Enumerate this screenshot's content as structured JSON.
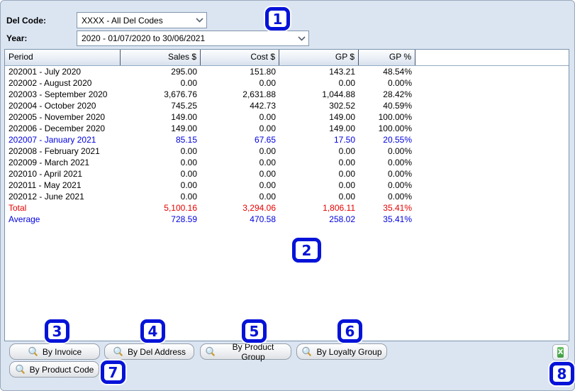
{
  "filters": {
    "del_code_label": "Del Code:",
    "del_code_value": "XXXX - All Del Codes",
    "year_label": "Year:",
    "year_value": "2020 - 01/07/2020 to 30/06/2021"
  },
  "table": {
    "columns": [
      "Period",
      "Sales $",
      "Cost $",
      "GP $",
      "GP %"
    ],
    "rows": [
      {
        "period": "202001 - July 2020",
        "sales": "295.00",
        "cost": "151.80",
        "gp": "143.21",
        "gp_pct": "48.54%",
        "style": "default"
      },
      {
        "period": "202002 - August 2020",
        "sales": "0.00",
        "cost": "0.00",
        "gp": "0.00",
        "gp_pct": "0.00%",
        "style": "default"
      },
      {
        "period": "202003 - September 2020",
        "sales": "3,676.76",
        "cost": "2,631.88",
        "gp": "1,044.88",
        "gp_pct": "28.42%",
        "style": "default"
      },
      {
        "period": "202004 - October 2020",
        "sales": "745.25",
        "cost": "442.73",
        "gp": "302.52",
        "gp_pct": "40.59%",
        "style": "default"
      },
      {
        "period": "202005 - November 2020",
        "sales": "149.00",
        "cost": "0.00",
        "gp": "149.00",
        "gp_pct": "100.00%",
        "style": "default"
      },
      {
        "period": "202006 - December 2020",
        "sales": "149.00",
        "cost": "0.00",
        "gp": "149.00",
        "gp_pct": "100.00%",
        "style": "default"
      },
      {
        "period": "202007 - January 2021",
        "sales": "85.15",
        "cost": "67.65",
        "gp": "17.50",
        "gp_pct": "20.55%",
        "style": "highlight"
      },
      {
        "period": "202008 - February 2021",
        "sales": "0.00",
        "cost": "0.00",
        "gp": "0.00",
        "gp_pct": "0.00%",
        "style": "default"
      },
      {
        "period": "202009 - March 2021",
        "sales": "0.00",
        "cost": "0.00",
        "gp": "0.00",
        "gp_pct": "0.00%",
        "style": "default"
      },
      {
        "period": "202010 - April 2021",
        "sales": "0.00",
        "cost": "0.00",
        "gp": "0.00",
        "gp_pct": "0.00%",
        "style": "default"
      },
      {
        "period": "202011 - May 2021",
        "sales": "0.00",
        "cost": "0.00",
        "gp": "0.00",
        "gp_pct": "0.00%",
        "style": "default"
      },
      {
        "period": "202012 - June 2021",
        "sales": "0.00",
        "cost": "0.00",
        "gp": "0.00",
        "gp_pct": "0.00%",
        "style": "default"
      },
      {
        "period": "Total",
        "sales": "5,100.16",
        "cost": "3,294.06",
        "gp": "1,806.11",
        "gp_pct": "35.41%",
        "style": "total"
      },
      {
        "period": "Average",
        "sales": "728.59",
        "cost": "470.58",
        "gp": "258.02",
        "gp_pct": "35.41%",
        "style": "average"
      }
    ]
  },
  "actions": {
    "buttons": [
      "By Invoice",
      "By Del Address",
      "By Product Group",
      "By Loyalty Group",
      "By Product Code"
    ],
    "export_icon": "excel-export-icon",
    "export_glyph": "X",
    "search_icon": "search-icon"
  },
  "annotations": {
    "badges": [
      "1",
      "2",
      "3",
      "4",
      "5",
      "6",
      "7",
      "8"
    ]
  },
  "colors": {
    "window_background": "#dbe5f2",
    "highlight_blue": "#0000e0",
    "total_red": "#e60000",
    "badge_blue": "#0513d8",
    "excel_green": "#3f9c3f"
  }
}
